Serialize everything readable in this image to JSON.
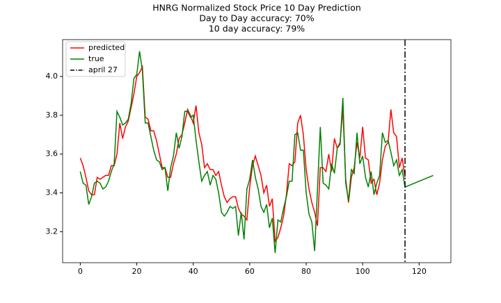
{
  "chart_data": {
    "type": "line",
    "title": "HNRG Normalized Stock Price 10 Day Prediction",
    "subtitle": [
      "Day to Day accuracy: 70%",
      "10 day accuracy: 79%"
    ],
    "series": [
      {
        "name": "predicted",
        "color": "#ff0000",
        "x": [
          0,
          1,
          2,
          3,
          4,
          5,
          6,
          7,
          8,
          9,
          10,
          11,
          12,
          13,
          14,
          15,
          16,
          17,
          18,
          19,
          20,
          21,
          22,
          23,
          24,
          25,
          26,
          27,
          28,
          29,
          30,
          31,
          32,
          33,
          34,
          35,
          36,
          37,
          38,
          39,
          40,
          41,
          42,
          43,
          44,
          45,
          46,
          47,
          48,
          49,
          50,
          51,
          52,
          53,
          54,
          55,
          56,
          57,
          58,
          59,
          60,
          61,
          62,
          63,
          64,
          65,
          66,
          67,
          68,
          69,
          70,
          71,
          72,
          73,
          74,
          75,
          76,
          77,
          78,
          79,
          80,
          81,
          82,
          83,
          84,
          85,
          86,
          87,
          88,
          89,
          90,
          91,
          92,
          93,
          94,
          95,
          96,
          97,
          98,
          99,
          100,
          101,
          102,
          103,
          104,
          105,
          106,
          107,
          108,
          109,
          110,
          111,
          112,
          113,
          114,
          115
        ],
        "values": [
          3.58,
          3.54,
          3.48,
          3.41,
          3.39,
          3.39,
          3.48,
          3.47,
          3.48,
          3.49,
          3.49,
          3.54,
          3.54,
          3.6,
          3.76,
          3.68,
          3.74,
          3.77,
          3.84,
          3.91,
          4.0,
          4.02,
          4.05,
          3.79,
          3.78,
          3.72,
          3.72,
          3.67,
          3.6,
          3.53,
          3.53,
          3.48,
          3.48,
          3.55,
          3.6,
          3.68,
          3.7,
          3.76,
          3.83,
          3.8,
          3.76,
          3.85,
          3.71,
          3.65,
          3.53,
          3.55,
          3.52,
          3.52,
          3.49,
          3.51,
          3.44,
          3.38,
          3.35,
          3.37,
          3.38,
          3.38,
          3.32,
          3.29,
          3.28,
          3.26,
          3.43,
          3.54,
          3.59,
          3.54,
          3.49,
          3.4,
          3.44,
          3.33,
          3.37,
          3.15,
          3.17,
          3.22,
          3.28,
          3.39,
          3.55,
          3.54,
          3.56,
          3.76,
          3.8,
          3.7,
          3.52,
          3.42,
          3.35,
          3.3,
          3.23,
          3.53,
          3.53,
          3.51,
          3.6,
          3.51,
          3.68,
          3.63,
          3.66,
          3.83,
          3.47,
          3.35,
          3.48,
          3.53,
          3.66,
          3.58,
          3.74,
          3.58,
          3.57,
          3.45,
          3.47,
          3.39,
          3.45,
          3.57,
          3.64,
          3.66,
          3.83,
          3.71,
          3.69,
          3.53,
          3.58,
          3.48
        ]
      },
      {
        "name": "true",
        "color": "#008000",
        "x": [
          0,
          1,
          2,
          3,
          4,
          5,
          6,
          7,
          8,
          9,
          10,
          11,
          12,
          13,
          14,
          15,
          16,
          17,
          18,
          19,
          20,
          21,
          22,
          23,
          24,
          25,
          26,
          27,
          28,
          29,
          30,
          31,
          32,
          33,
          34,
          35,
          36,
          37,
          38,
          39,
          40,
          41,
          42,
          43,
          44,
          45,
          46,
          47,
          48,
          49,
          50,
          51,
          52,
          53,
          54,
          55,
          56,
          57,
          58,
          59,
          60,
          61,
          62,
          63,
          64,
          65,
          66,
          67,
          68,
          69,
          70,
          71,
          72,
          73,
          74,
          75,
          76,
          77,
          78,
          79,
          80,
          81,
          82,
          83,
          84,
          85,
          86,
          87,
          88,
          89,
          90,
          91,
          92,
          93,
          94,
          95,
          96,
          97,
          98,
          99,
          100,
          101,
          102,
          103,
          104,
          105,
          106,
          107,
          108,
          109,
          110,
          111,
          112,
          113,
          114,
          115,
          125
        ],
        "values": [
          3.51,
          3.45,
          3.44,
          3.34,
          3.38,
          3.45,
          3.46,
          3.45,
          3.42,
          3.43,
          3.46,
          3.51,
          3.55,
          3.82,
          3.79,
          3.75,
          3.76,
          3.78,
          3.86,
          3.99,
          4.01,
          4.13,
          4.03,
          3.76,
          3.76,
          3.69,
          3.62,
          3.57,
          3.56,
          3.52,
          3.53,
          3.41,
          3.53,
          3.59,
          3.71,
          3.63,
          3.69,
          3.82,
          3.82,
          3.79,
          3.8,
          3.67,
          3.56,
          3.46,
          3.49,
          3.51,
          3.44,
          3.49,
          3.47,
          3.4,
          3.3,
          3.28,
          3.3,
          3.33,
          3.32,
          3.33,
          3.18,
          3.3,
          3.16,
          3.42,
          3.47,
          3.57,
          3.48,
          3.42,
          3.33,
          3.3,
          3.34,
          3.22,
          3.27,
          3.09,
          3.26,
          3.25,
          3.32,
          3.38,
          3.46,
          3.46,
          3.7,
          3.71,
          3.62,
          3.62,
          3.4,
          3.29,
          3.25,
          3.1,
          3.42,
          3.74,
          3.45,
          3.44,
          3.42,
          3.55,
          3.5,
          3.63,
          3.65,
          3.89,
          3.45,
          3.36,
          3.52,
          3.5,
          3.71,
          3.55,
          3.59,
          3.48,
          3.43,
          3.51,
          3.39,
          3.45,
          3.49,
          3.71,
          3.66,
          3.67,
          3.61,
          3.54,
          3.57,
          3.49,
          3.52,
          3.43,
          3.49
        ]
      }
    ],
    "vline": {
      "x": 115,
      "name": "april 27",
      "color": "#000000"
    },
    "xlim": [
      -6.25,
      131.25
    ],
    "ylim": [
      3.04,
      4.19
    ],
    "xticks": [
      0,
      20,
      40,
      60,
      80,
      100,
      120
    ],
    "yticks": [
      3.2,
      3.4,
      3.6,
      3.8,
      {
        "value": 4,
        "label": "4.0"
      }
    ],
    "legend": "upper left"
  }
}
